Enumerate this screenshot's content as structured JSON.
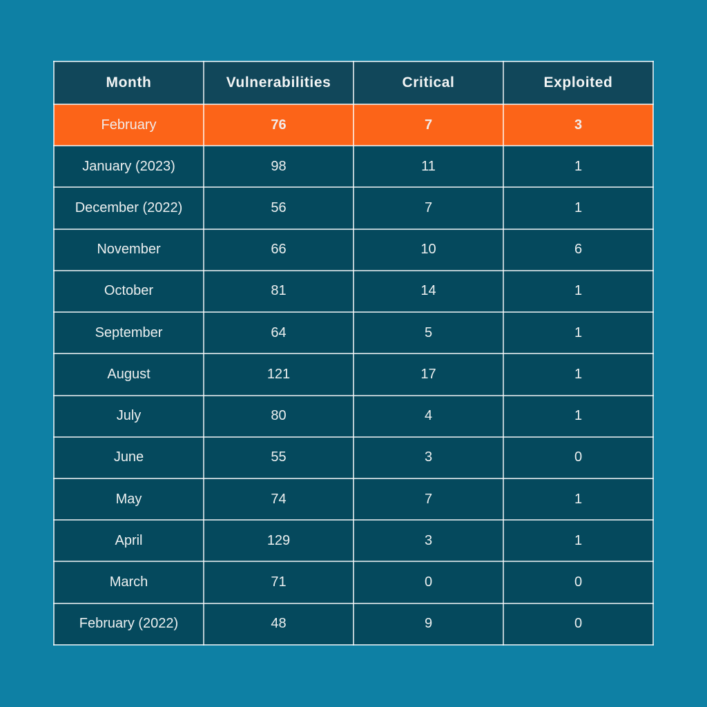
{
  "page": {
    "background_color": "#0e80a4"
  },
  "table": {
    "header_bg_color": "#11475a",
    "cell_bg_color": "#05495d",
    "highlight_bg_color": "#fc6418",
    "border_color": "rgba(255,255,255,0.72)",
    "headers": [
      "Month",
      "Vulnerabilities",
      "Critical",
      "Exploited"
    ],
    "columns": [
      "month",
      "vulnerabilities",
      "critical",
      "exploited"
    ],
    "rows": [
      {
        "month": "February",
        "vulnerabilities": "76",
        "critical": "7",
        "exploited": "3",
        "highlighted": true
      },
      {
        "month": "January (2023)",
        "vulnerabilities": "98",
        "critical": "11",
        "exploited": "1",
        "highlighted": false
      },
      {
        "month": "December (2022)",
        "vulnerabilities": "56",
        "critical": "7",
        "exploited": "1",
        "highlighted": false
      },
      {
        "month": "November",
        "vulnerabilities": "66",
        "critical": "10",
        "exploited": "6",
        "highlighted": false
      },
      {
        "month": "October",
        "vulnerabilities": "81",
        "critical": "14",
        "exploited": "1",
        "highlighted": false
      },
      {
        "month": "September",
        "vulnerabilities": "64",
        "critical": "5",
        "exploited": "1",
        "highlighted": false
      },
      {
        "month": "August",
        "vulnerabilities": "121",
        "critical": "17",
        "exploited": "1",
        "highlighted": false
      },
      {
        "month": "July",
        "vulnerabilities": "80",
        "critical": "4",
        "exploited": "1",
        "highlighted": false
      },
      {
        "month": "June",
        "vulnerabilities": "55",
        "critical": "3",
        "exploited": "0",
        "highlighted": false
      },
      {
        "month": "May",
        "vulnerabilities": "74",
        "critical": "7",
        "exploited": "1",
        "highlighted": false
      },
      {
        "month": "April",
        "vulnerabilities": "129",
        "critical": "3",
        "exploited": "1",
        "highlighted": false
      },
      {
        "month": "March",
        "vulnerabilities": "71",
        "critical": "0",
        "exploited": "0",
        "highlighted": false
      },
      {
        "month": "February (2022)",
        "vulnerabilities": "48",
        "critical": "9",
        "exploited": "0",
        "highlighted": false
      }
    ]
  },
  "chart_data": {
    "type": "table",
    "title": "",
    "columns": [
      "Month",
      "Vulnerabilities",
      "Critical",
      "Exploited"
    ],
    "rows": [
      [
        "February",
        76,
        7,
        3
      ],
      [
        "January (2023)",
        98,
        11,
        1
      ],
      [
        "December (2022)",
        56,
        7,
        1
      ],
      [
        "November",
        66,
        10,
        6
      ],
      [
        "October",
        81,
        14,
        1
      ],
      [
        "September",
        64,
        5,
        1
      ],
      [
        "August",
        121,
        17,
        1
      ],
      [
        "July",
        80,
        4,
        1
      ],
      [
        "June",
        55,
        3,
        0
      ],
      [
        "May",
        74,
        7,
        1
      ],
      [
        "April",
        129,
        3,
        1
      ],
      [
        "March",
        71,
        0,
        0
      ],
      [
        "February (2022)",
        48,
        9,
        0
      ]
    ],
    "highlighted_row": "February",
    "layout": {
      "page_bg": "#0e80a4",
      "header_bg": "#11475a",
      "row_bg": "#05495d",
      "highlight_bg": "#fc6418",
      "grid": true,
      "text_color": "#edf0f0"
    }
  }
}
